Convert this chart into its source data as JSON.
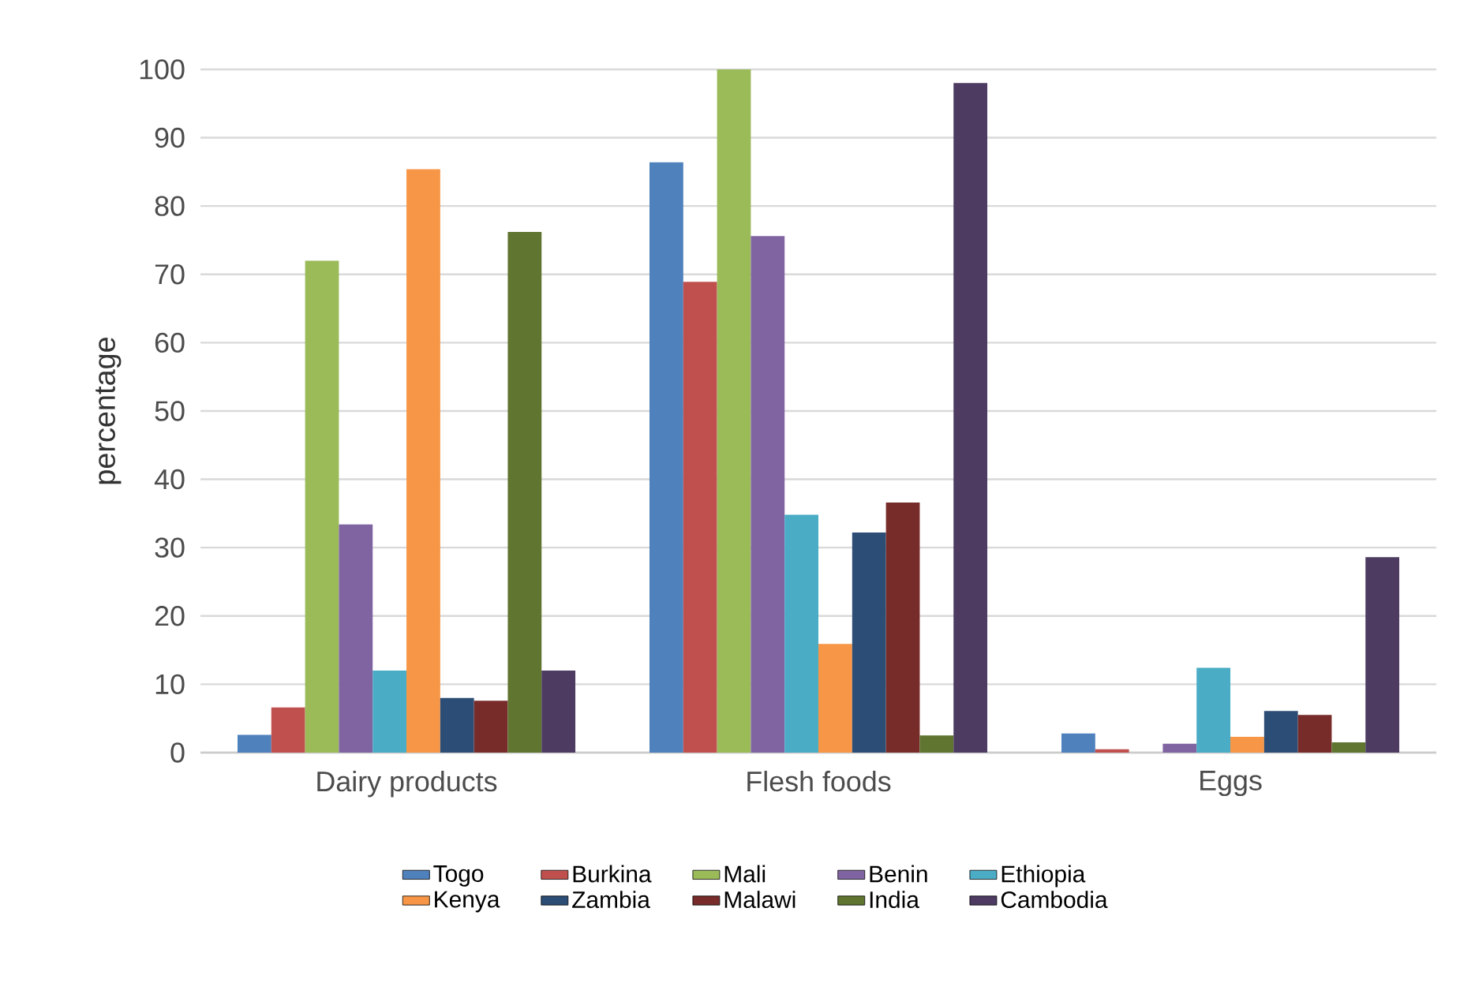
{
  "chart_data": {
    "type": "bar",
    "ylabel": "percentage",
    "categories": [
      "Dairy products",
      "Flesh foods",
      "Eggs"
    ],
    "series": [
      {
        "name": "Togo",
        "color": "#4f81bd",
        "values": [
          2.6,
          86.4,
          2.8
        ]
      },
      {
        "name": "Burkina",
        "color": "#c0504d",
        "values": [
          6.6,
          68.9,
          0.5
        ]
      },
      {
        "name": "Mali",
        "color": "#9bbb59",
        "values": [
          72,
          100,
          0
        ]
      },
      {
        "name": "Benin",
        "color": "#8064a2",
        "values": [
          33.4,
          75.6,
          1.3
        ]
      },
      {
        "name": "Ethiopia",
        "color": "#4bacc6",
        "values": [
          12,
          34.8,
          12.4
        ]
      },
      {
        "name": "Kenya",
        "color": "#f79646",
        "values": [
          85.4,
          15.9,
          2.3
        ]
      },
      {
        "name": "Zambia",
        "color": "#2c4d75",
        "values": [
          8,
          32.2,
          6.1
        ]
      },
      {
        "name": "Malawi",
        "color": "#772c2a",
        "values": [
          7.6,
          36.6,
          5.5
        ]
      },
      {
        "name": "India",
        "color": "#5f7530",
        "values": [
          76.2,
          2.5,
          1.5
        ]
      },
      {
        "name": "Cambodia",
        "color": "#4d3b62",
        "values": [
          12,
          98,
          28.6
        ]
      }
    ],
    "ylim": [
      0,
      100
    ],
    "yticks": [
      0,
      10,
      20,
      30,
      40,
      50,
      60,
      70,
      80,
      90,
      100
    ],
    "grid": "y",
    "legend": "bottom"
  }
}
